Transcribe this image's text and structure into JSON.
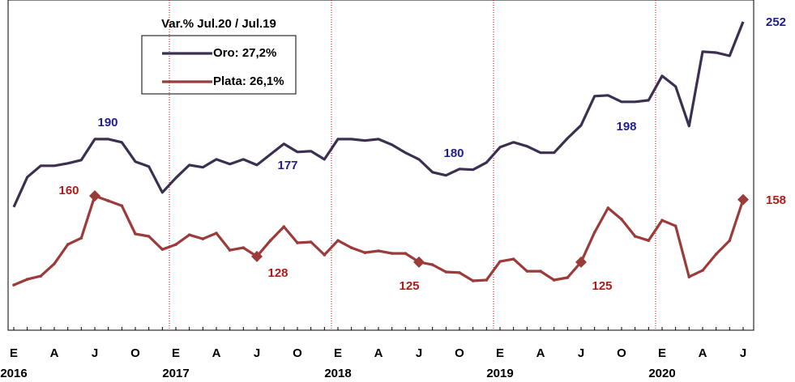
{
  "chart_data": {
    "type": "line",
    "legend_title": "Var.% Jul.20 / Jul.19",
    "categories": [
      "E",
      null,
      null,
      "A",
      null,
      null,
      "J",
      null,
      null,
      "O",
      null,
      null,
      "E",
      null,
      null,
      "A",
      null,
      null,
      "J",
      null,
      null,
      "O",
      null,
      null,
      "E",
      null,
      null,
      "A",
      null,
      null,
      "J",
      null,
      null,
      "O",
      null,
      null,
      "E",
      null,
      null,
      "A",
      null,
      null,
      "J",
      null,
      null,
      "O",
      null,
      null,
      "E",
      null,
      null,
      "A",
      null,
      null,
      "J"
    ],
    "years": [
      "2016",
      "2017",
      "2018",
      "2019",
      "2020"
    ],
    "ylim": [
      89,
      263.5
    ],
    "series": [
      {
        "name": "Oro: 27,2%",
        "color": "#3b3050",
        "values": [
          154.1,
          169.9,
          175.9,
          175.9,
          177.2,
          178.9,
          190,
          190,
          188.3,
          178.1,
          175.5,
          161.8,
          169.5,
          176.3,
          175.1,
          179.3,
          176.8,
          179.3,
          176.3,
          181.9,
          187.5,
          183.2,
          183.6,
          179.3,
          190,
          190,
          189.2,
          190,
          187,
          182.8,
          179.3,
          172.5,
          170.8,
          174.2,
          173.8,
          177.6,
          185.7,
          188.3,
          186.2,
          182.8,
          182.8,
          190.4,
          197.3,
          212.7,
          213.1,
          209.7,
          209.7,
          210.5,
          223.4,
          217.8,
          196.9,
          236.2,
          235.7,
          234,
          252
        ]
      },
      {
        "name": "Plata: 26,1%",
        "color": "#9b3b3a",
        "values": [
          112.9,
          115.9,
          117.6,
          124.1,
          134.3,
          137.7,
          160,
          157.4,
          154.8,
          139.9,
          138.6,
          131.7,
          134.3,
          139.4,
          137.3,
          140.3,
          131.3,
          132.6,
          128,
          136.4,
          143.7,
          135.2,
          135.6,
          128.8,
          136.4,
          132.6,
          130,
          130.9,
          129.6,
          129.6,
          125,
          123.6,
          119.8,
          119.4,
          115.1,
          115.5,
          125.3,
          126.6,
          120.2,
          120.2,
          115.5,
          116.8,
          125,
          140.7,
          153.6,
          147.6,
          138.6,
          136.4,
          147.1,
          144.1,
          117.2,
          120.6,
          129.2,
          136.4,
          158
        ]
      }
    ],
    "annotations": [
      "177",
      "180",
      "198"
    ]
  }
}
